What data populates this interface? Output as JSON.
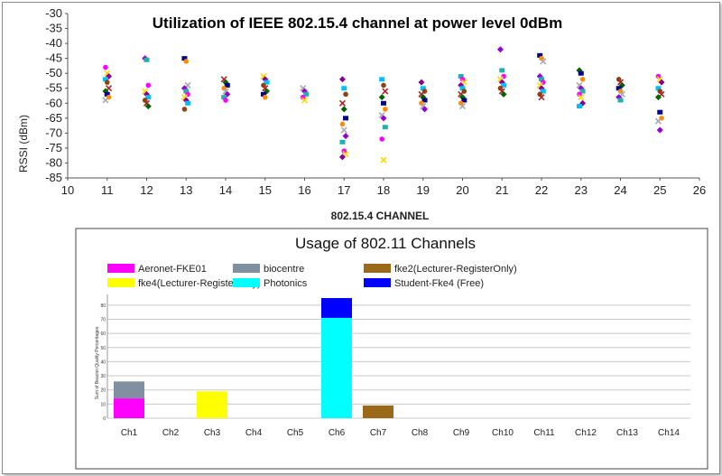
{
  "chart_data": [
    {
      "type": "scatter",
      "title": "Utilization of  IEEE 802.15.4 channel at power level 0dBm",
      "xlabel": "802.15.4 CHANNEL",
      "ylabel": "RSSI (dBm)",
      "xlim": [
        10,
        26
      ],
      "ylim": [
        -85,
        -30
      ],
      "xticks": [
        "10",
        "11",
        "12",
        "13",
        "14",
        "15",
        "16",
        "17",
        "18",
        "19",
        "20",
        "21",
        "22",
        "23",
        "24",
        "25",
        "26"
      ],
      "yticks": [
        "-30",
        "-35",
        "-40",
        "-45",
        "-50",
        "-55",
        "-60",
        "-65",
        "-70",
        "-75",
        "-80",
        "-85"
      ],
      "marker_colors": [
        "#ff00ff",
        "#ffd700",
        "#8b008b",
        "#00bfff",
        "#8b4513",
        "#b22222",
        "#006400",
        "#00008b",
        "#ff8c00",
        "#a9a9a9",
        "#9400d3",
        "#20b2aa"
      ],
      "points": [
        {
          "x": 11,
          "y": [
            -48,
            -50,
            -51,
            -52,
            -53,
            -55,
            -56,
            -57,
            -58,
            -59
          ]
        },
        {
          "x": 12,
          "y": [
            -45,
            -45.5,
            -54,
            -56,
            -57,
            -58,
            -59,
            -60,
            -61
          ]
        },
        {
          "x": 13,
          "y": [
            -45,
            -46,
            -54,
            -55,
            -56,
            -57,
            -58,
            -59,
            -60,
            -62
          ]
        },
        {
          "x": 14,
          "y": [
            -52,
            -53,
            -54,
            -55,
            -56,
            -57,
            -58,
            -59
          ]
        },
        {
          "x": 15,
          "y": [
            -51,
            -52,
            -53,
            -54,
            -55,
            -56,
            -57,
            -58
          ]
        },
        {
          "x": 16,
          "y": [
            -55,
            -56,
            -57,
            -58,
            -59
          ]
        },
        {
          "x": 17,
          "y": [
            -52,
            -55,
            -57,
            -60,
            -62,
            -65,
            -67,
            -69,
            -71,
            -73,
            -76,
            -77,
            -78
          ]
        },
        {
          "x": 18,
          "y": [
            -52,
            -54,
            -56,
            -58,
            -60,
            -62,
            -64,
            -65,
            -68,
            -72,
            -79
          ]
        },
        {
          "x": 19,
          "y": [
            -53,
            -55,
            -56,
            -57,
            -58,
            -59,
            -60,
            -61,
            -62
          ]
        },
        {
          "x": 20,
          "y": [
            -51,
            -52,
            -53,
            -54,
            -55,
            -56,
            -57,
            -58,
            -59,
            -60,
            -61
          ]
        },
        {
          "x": 21,
          "y": [
            -42,
            -49,
            -51,
            -52,
            -53,
            -54,
            -55,
            -56,
            -57
          ]
        },
        {
          "x": 22,
          "y": [
            -44,
            -45,
            -46,
            -51,
            -52,
            -53,
            -54,
            -55,
            -56,
            -57,
            -58
          ]
        },
        {
          "x": 23,
          "y": [
            -49,
            -50,
            -52,
            -54,
            -55,
            -56,
            -57,
            -58,
            -60,
            -61
          ]
        },
        {
          "x": 24,
          "y": [
            -52,
            -53,
            -54,
            -55,
            -56,
            -57,
            -58,
            -59
          ]
        },
        {
          "x": 25,
          "y": [
            -51,
            -52,
            -53,
            -55,
            -56,
            -57,
            -58,
            -63,
            -65,
            -66,
            -69
          ]
        }
      ]
    },
    {
      "type": "bar",
      "stacked": true,
      "title": "Usage of 802.11 Channels",
      "ylabel": "Sum of Beacon Quality Percentages",
      "ylim": [
        0,
        85
      ],
      "categories": [
        "Ch1",
        "Ch2",
        "Ch3",
        "Ch4",
        "Ch5",
        "Ch6",
        "Ch7",
        "Ch8",
        "Ch9",
        "Ch10",
        "Ch11",
        "Ch12",
        "Ch13",
        "Ch14"
      ],
      "yticks": [
        "0",
        "10",
        "20",
        "30",
        "40",
        "50",
        "60",
        "70",
        "80"
      ],
      "series": [
        {
          "name": "Aeronet-FKE01",
          "color": "#ff00ff",
          "values": [
            14,
            0,
            0,
            0,
            0,
            0,
            0,
            0,
            0,
            0,
            0,
            0,
            0,
            0
          ]
        },
        {
          "name": "biocentre",
          "color": "#8090a0",
          "values": [
            12,
            0,
            0,
            0,
            0,
            0,
            0,
            0,
            0,
            0,
            0,
            0,
            0,
            0
          ]
        },
        {
          "name": "fke2(Lecturer-RegisterOnly)",
          "color": "#9a6a1a",
          "values": [
            0,
            0,
            0,
            0,
            0,
            0,
            9,
            0,
            0,
            0,
            0,
            0,
            0,
            0
          ]
        },
        {
          "name": "fke4(Lecturer-RegisterOnly)",
          "color": "#ffff00",
          "values": [
            0,
            0,
            19,
            0,
            0,
            0,
            0,
            0,
            0,
            0,
            0,
            0,
            0,
            0
          ]
        },
        {
          "name": "Photonics",
          "color": "#00ffff",
          "values": [
            0,
            0,
            0,
            0,
            0,
            71,
            0,
            0,
            0,
            0,
            0,
            0,
            0,
            0
          ]
        },
        {
          "name": "Student-Fke4 (Free)",
          "color": "#0000ff",
          "values": [
            0,
            0,
            0,
            0,
            0,
            14,
            0,
            0,
            0,
            0,
            0,
            0,
            0,
            0
          ]
        }
      ],
      "legend_rows": [
        [
          0,
          1,
          2
        ],
        [
          3,
          4,
          5
        ]
      ]
    }
  ]
}
